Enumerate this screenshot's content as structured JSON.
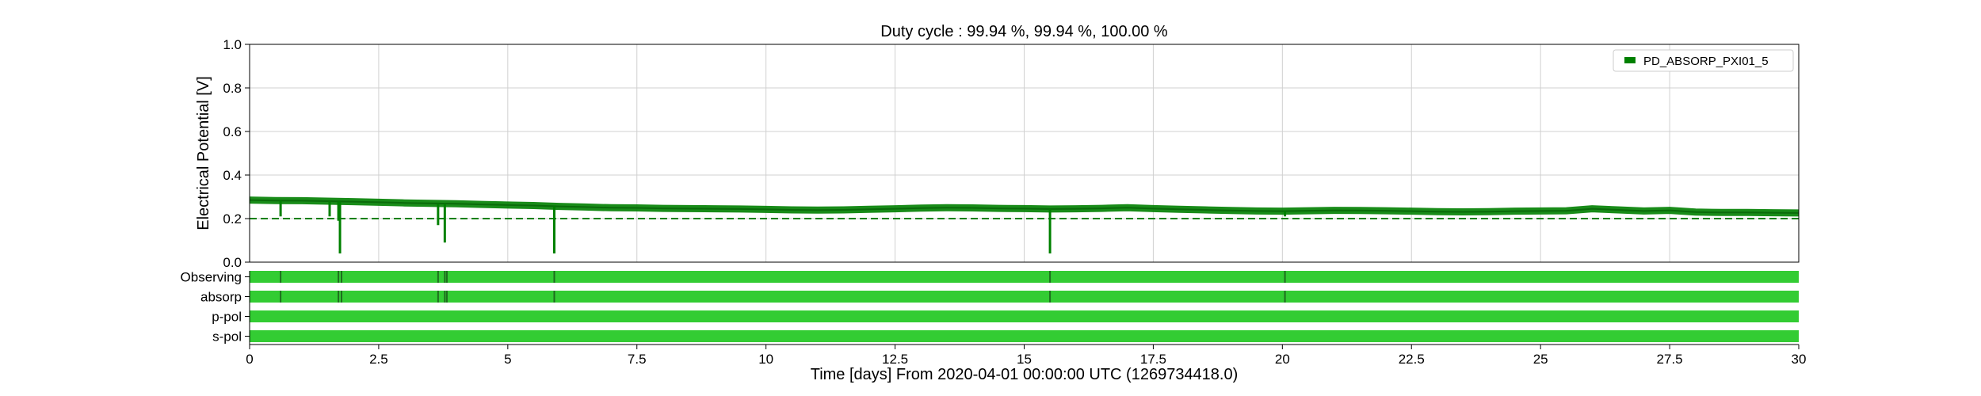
{
  "chart_data": {
    "type": "line",
    "title": "Duty cycle : 99.94 %, 99.94 %, 100.00 %",
    "xlabel": "Time [days] From 2020-04-01 00:00:00 UTC (1269734418.0)",
    "ylabel": "Electrical Potential [V]",
    "xlim": [
      0,
      30
    ],
    "ylim": [
      0,
      1
    ],
    "grid": true,
    "legend_position": "top-right",
    "xticks": [
      "0",
      "2.5",
      "5",
      "7.5",
      "10",
      "12.5",
      "15",
      "17.5",
      "20",
      "22.5",
      "25",
      "27.5",
      "30"
    ],
    "yticks": [
      "0.0",
      "0.2",
      "0.4",
      "0.6",
      "0.8",
      "1.0"
    ],
    "series": [
      {
        "name": "PD_ABSORP_PXI01_5",
        "color": "#008000",
        "x": [
          0,
          0.5,
          1,
          1.5,
          2,
          2.5,
          3,
          3.5,
          4,
          4.5,
          5,
          5.5,
          6,
          6.5,
          7,
          7.5,
          8,
          8.5,
          9,
          9.5,
          10,
          10.5,
          11,
          11.5,
          12,
          12.5,
          13,
          13.5,
          14,
          14.5,
          15,
          15.5,
          16,
          16.5,
          17,
          17.5,
          18,
          18.5,
          19,
          19.5,
          20,
          20.5,
          21,
          21.5,
          22,
          22.5,
          23,
          23.5,
          24,
          24.5,
          25,
          25.5,
          26,
          26.5,
          27,
          27.5,
          28,
          28.5,
          29,
          29.5,
          30
        ],
        "y": [
          0.285,
          0.283,
          0.282,
          0.28,
          0.278,
          0.275,
          0.272,
          0.27,
          0.268,
          0.265,
          0.262,
          0.26,
          0.256,
          0.253,
          0.25,
          0.249,
          0.247,
          0.246,
          0.245,
          0.244,
          0.242,
          0.24,
          0.239,
          0.24,
          0.243,
          0.245,
          0.248,
          0.25,
          0.249,
          0.247,
          0.246,
          0.244,
          0.245,
          0.247,
          0.25,
          0.246,
          0.243,
          0.24,
          0.237,
          0.235,
          0.234,
          0.236,
          0.238,
          0.237,
          0.236,
          0.234,
          0.232,
          0.231,
          0.232,
          0.234,
          0.235,
          0.236,
          0.245,
          0.24,
          0.235,
          0.238,
          0.23,
          0.228,
          0.228,
          0.227,
          0.226
        ],
        "dips": [
          {
            "x": 0.6,
            "y": 0.21
          },
          {
            "x": 1.55,
            "y": 0.21
          },
          {
            "x": 1.72,
            "y": 0.19
          },
          {
            "x": 1.75,
            "y": 0.04
          },
          {
            "x": 3.65,
            "y": 0.17
          },
          {
            "x": 3.78,
            "y": 0.09
          },
          {
            "x": 5.9,
            "y": 0.04
          },
          {
            "x": 15.5,
            "y": 0.04
          },
          {
            "x": 20.05,
            "y": 0.21
          }
        ]
      }
    ],
    "threshold": {
      "y": 0.2,
      "color": "#008000",
      "style": "dashed"
    },
    "segment_rows": [
      {
        "label": "Observing",
        "color": "#33cc33",
        "gaps": [
          0.6,
          1.72,
          1.78,
          3.65,
          3.78,
          3.82,
          5.9,
          15.5,
          20.05
        ]
      },
      {
        "label": "absorp",
        "color": "#33cc33",
        "gaps": [
          0.6,
          1.72,
          1.78,
          3.65,
          3.78,
          3.82,
          5.9,
          15.5,
          20.05
        ]
      },
      {
        "label": "p-pol",
        "color": "#33cc33",
        "gaps": []
      },
      {
        "label": "s-pol",
        "color": "#33cc33",
        "gaps": []
      }
    ]
  }
}
